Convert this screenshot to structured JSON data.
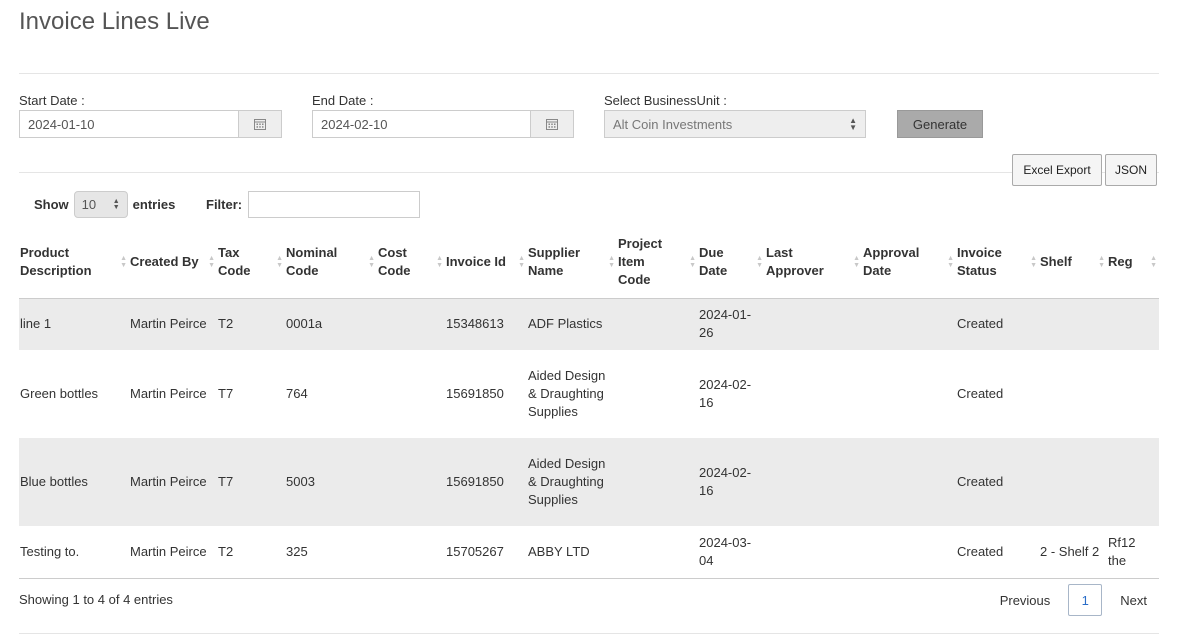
{
  "page_title": "Invoice Lines Live",
  "filters": {
    "start_label": "Start Date :",
    "start_value": "2024-01-10",
    "end_label": "End Date :",
    "end_value": "2024-02-10",
    "bu_label": "Select BusinessUnit :",
    "bu_value": "Alt Coin Investments",
    "generate_label": "Generate"
  },
  "exports": {
    "excel_label": "Excel Export",
    "json_label": "JSON"
  },
  "table_controls": {
    "show_label": "Show",
    "entries_label": "entries",
    "page_length": "10",
    "filter_label": "Filter:"
  },
  "columns": [
    {
      "key": "product",
      "label": "Product Description"
    },
    {
      "key": "created_by",
      "label": "Created By"
    },
    {
      "key": "tax_code",
      "label": "Tax Code"
    },
    {
      "key": "nominal",
      "label": "Nominal Code"
    },
    {
      "key": "cost",
      "label": "Cost Code"
    },
    {
      "key": "invoice_id",
      "label": "Invoice Id"
    },
    {
      "key": "supplier",
      "label": "Supplier Name"
    },
    {
      "key": "project",
      "label": "Project Item Code"
    },
    {
      "key": "due",
      "label": "Due Date"
    },
    {
      "key": "approver",
      "label": "Last Approver"
    },
    {
      "key": "approval_date",
      "label": "Approval Date"
    },
    {
      "key": "status",
      "label": "Invoice Status"
    },
    {
      "key": "shelf",
      "label": "Shelf"
    },
    {
      "key": "reg",
      "label": "Reg"
    }
  ],
  "rows": [
    {
      "product": "line 1",
      "created_by": "Martin Peirce",
      "tax_code": "T2",
      "nominal": "0001a",
      "cost": "",
      "invoice_id": "15348613",
      "supplier": "ADF Plastics",
      "project": "",
      "due": "2024-01-26",
      "approver": "",
      "approval_date": "",
      "status": "Created",
      "shelf": "",
      "reg": ""
    },
    {
      "product": "Green bottles",
      "created_by": "Martin Peirce",
      "tax_code": "T7",
      "nominal": "764",
      "cost": "",
      "invoice_id": "15691850",
      "supplier": "Aided Design & Draughting Supplies",
      "project": "",
      "due": "2024-02-16",
      "approver": "",
      "approval_date": "",
      "status": "Created",
      "shelf": "",
      "reg": ""
    },
    {
      "product": "Blue bottles",
      "created_by": "Martin Peirce",
      "tax_code": "T7",
      "nominal": "5003",
      "cost": "",
      "invoice_id": "15691850",
      "supplier": "Aided Design & Draughting Supplies",
      "project": "",
      "due": "2024-02-16",
      "approver": "",
      "approval_date": "",
      "status": "Created",
      "shelf": "",
      "reg": ""
    },
    {
      "product": "Testing to.",
      "created_by": "Martin Peirce",
      "tax_code": "T2",
      "nominal": "325",
      "cost": "",
      "invoice_id": "15705267",
      "supplier": "ABBY LTD",
      "project": "",
      "due": "2024-03-04",
      "approver": "",
      "approval_date": "",
      "status": "Created",
      "shelf": "2 - Shelf 2",
      "reg": "Rf12 the"
    }
  ],
  "footer": {
    "info": "Showing 1 to 4 of 4 entries",
    "previous": "Previous",
    "current_page": "1",
    "next": "Next"
  },
  "icons": {
    "calendar": "calendar-icon",
    "sort": "sort-icon",
    "select_arrows": "select-arrows-icon"
  }
}
